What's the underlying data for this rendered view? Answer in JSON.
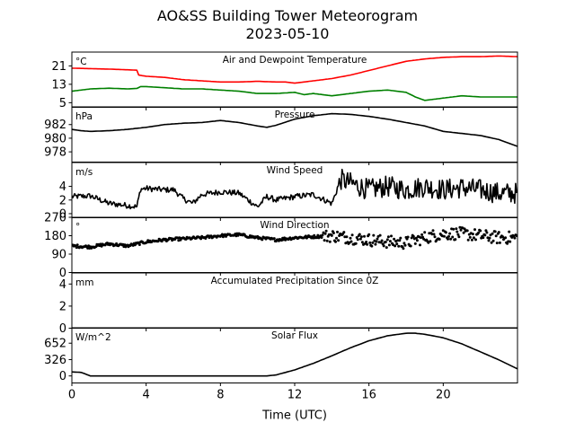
{
  "figure": {
    "title": "AO&SS Building Tower Meteorogram",
    "date": "2023-05-10",
    "xlabel": "Time (UTC)",
    "x_ticks": [
      0,
      4,
      8,
      12,
      16,
      20
    ],
    "x_range": [
      0,
      24
    ],
    "colors": {
      "temperature": "#ff0000",
      "dewpoint": "#008000",
      "default": "#000000"
    }
  },
  "chart_data": [
    {
      "type": "line",
      "title": "Air and Dewpoint Temperature",
      "unit": "°C",
      "ylim": [
        3,
        27
      ],
      "yticks": [
        5,
        13,
        21
      ],
      "series": [
        {
          "color": "#ff0000",
          "points": [
            [
              0,
              20
            ],
            [
              1,
              19.8
            ],
            [
              2,
              19.6
            ],
            [
              3,
              19.3
            ],
            [
              3.5,
              19.1
            ],
            [
              3.6,
              17
            ],
            [
              4,
              16.5
            ],
            [
              5,
              16
            ],
            [
              6,
              15
            ],
            [
              7,
              14.5
            ],
            [
              8,
              14
            ],
            [
              9,
              14
            ],
            [
              10,
              14.3
            ],
            [
              11,
              14
            ],
            [
              11.5,
              14
            ],
            [
              12,
              13.5
            ],
            [
              12.5,
              14
            ],
            [
              13,
              14.5
            ],
            [
              14,
              15.5
            ],
            [
              15,
              17
            ],
            [
              16,
              19
            ],
            [
              17,
              21
            ],
            [
              18,
              23
            ],
            [
              19,
              24
            ],
            [
              20,
              24.7
            ],
            [
              21,
              25
            ],
            [
              22,
              25
            ],
            [
              23,
              25.3
            ],
            [
              24,
              25
            ]
          ]
        },
        {
          "color": "#008000",
          "points": [
            [
              0,
              10
            ],
            [
              1,
              11
            ],
            [
              2,
              11.3
            ],
            [
              3,
              11
            ],
            [
              3.5,
              11.2
            ],
            [
              3.7,
              12
            ],
            [
              4,
              12
            ],
            [
              5,
              11.5
            ],
            [
              6,
              11
            ],
            [
              7,
              11
            ],
            [
              8,
              10.5
            ],
            [
              9,
              10
            ],
            [
              10,
              9
            ],
            [
              11,
              9
            ],
            [
              12,
              9.5
            ],
            [
              12.5,
              8.5
            ],
            [
              13,
              9
            ],
            [
              14,
              8
            ],
            [
              15,
              9
            ],
            [
              16,
              10
            ],
            [
              17,
              10.5
            ],
            [
              18,
              9.5
            ],
            [
              18.5,
              7.5
            ],
            [
              19,
              6
            ],
            [
              20,
              7
            ],
            [
              21,
              8
            ],
            [
              22,
              7.5
            ],
            [
              23,
              7.5
            ],
            [
              24,
              7.5
            ]
          ]
        }
      ]
    },
    {
      "type": "line",
      "title": "Pressure",
      "unit": "hPa",
      "ylim": [
        976.5,
        984.6
      ],
      "yticks": [
        978,
        980,
        982
      ],
      "series": [
        {
          "color": "#000000",
          "points": [
            [
              0,
              981.3
            ],
            [
              0.5,
              981.1
            ],
            [
              1,
              981
            ],
            [
              2,
              981.1
            ],
            [
              3,
              981.3
            ],
            [
              4,
              981.6
            ],
            [
              5,
              982
            ],
            [
              6,
              982.2
            ],
            [
              7,
              982.3
            ],
            [
              8,
              982.6
            ],
            [
              9,
              982.3
            ],
            [
              10,
              981.8
            ],
            [
              10.5,
              981.6
            ],
            [
              11,
              981.9
            ],
            [
              12,
              982.8
            ],
            [
              13,
              983.3
            ],
            [
              14,
              983.6
            ],
            [
              15,
              983.5
            ],
            [
              16,
              983.2
            ],
            [
              17,
              982.8
            ],
            [
              18,
              982.3
            ],
            [
              19,
              981.8
            ],
            [
              20,
              981
            ],
            [
              21,
              980.7
            ],
            [
              22,
              980.4
            ],
            [
              23,
              979.8
            ],
            [
              24,
              978.8
            ]
          ]
        }
      ]
    },
    {
      "type": "line",
      "title": "Wind Speed",
      "unit": "m/s",
      "ylim": [
        -0.6,
        7.5
      ],
      "yticks": [
        0,
        2,
        4
      ],
      "noise": 1.2,
      "series": [
        {
          "color": "#000000",
          "points": [
            [
              0,
              2.5
            ],
            [
              1,
              2.6
            ],
            [
              2,
              1.5
            ],
            [
              3,
              1.2
            ],
            [
              3.5,
              1
            ],
            [
              3.7,
              3.6
            ],
            [
              4,
              3.7
            ],
            [
              5,
              3.5
            ],
            [
              5.5,
              3.5
            ],
            [
              6,
              2.2
            ],
            [
              6.5,
              1.5
            ],
            [
              7,
              2.8
            ],
            [
              8,
              3.2
            ],
            [
              9,
              3
            ],
            [
              9.5,
              2
            ],
            [
              10,
              1
            ],
            [
              10.5,
              2.5
            ],
            [
              11,
              2
            ],
            [
              12,
              2.5
            ],
            [
              13,
              2.8
            ],
            [
              14,
              1.5
            ],
            [
              14.5,
              5
            ],
            [
              15,
              4.5
            ],
            [
              16,
              3.5
            ],
            [
              17,
              4
            ],
            [
              18,
              3.5
            ],
            [
              19,
              4
            ],
            [
              20,
              3.5
            ],
            [
              21,
              3.8
            ],
            [
              22,
              3.5
            ],
            [
              23,
              3
            ],
            [
              24,
              3
            ]
          ]
        }
      ]
    },
    {
      "type": "scatter",
      "title": "Wind Direction",
      "unit": "°",
      "ylim": [
        0,
        270
      ],
      "yticks": [
        0,
        90,
        180,
        270
      ],
      "noise": 14,
      "series": [
        {
          "color": "#000000",
          "points": [
            [
              0,
              130
            ],
            [
              1,
              125
            ],
            [
              2,
              140
            ],
            [
              3,
              130
            ],
            [
              4,
              150
            ],
            [
              5,
              160
            ],
            [
              6,
              165
            ],
            [
              7,
              170
            ],
            [
              8,
              180
            ],
            [
              9,
              185
            ],
            [
              10,
              170
            ],
            [
              11,
              160
            ],
            [
              12,
              170
            ],
            [
              13,
              175
            ],
            [
              14,
              180
            ],
            [
              15,
              170
            ],
            [
              16,
              160
            ],
            [
              17,
              150
            ],
            [
              18,
              145
            ],
            [
              19,
              170
            ],
            [
              20,
              190
            ],
            [
              21,
              190
            ],
            [
              22,
              180
            ],
            [
              23,
              170
            ],
            [
              24,
              170
            ]
          ]
        }
      ]
    },
    {
      "type": "line",
      "title": "Accumulated Precipitation Since 0Z",
      "unit": "mm",
      "ylim": [
        0,
        5
      ],
      "yticks": [
        0,
        2,
        4
      ],
      "series": [
        {
          "color": "#000000",
          "points": [
            [
              0,
              0
            ],
            [
              24,
              0
            ]
          ]
        }
      ]
    },
    {
      "type": "line",
      "title": "Solar Flux",
      "unit": "W/m^2",
      "ylim": [
        -140,
        960
      ],
      "yticks": [
        0,
        326,
        652
      ],
      "series": [
        {
          "color": "#000000",
          "points": [
            [
              0,
              80
            ],
            [
              0.5,
              70
            ],
            [
              1,
              0
            ],
            [
              10.5,
              0
            ],
            [
              11,
              20
            ],
            [
              12,
              120
            ],
            [
              13,
              250
            ],
            [
              14,
              400
            ],
            [
              15,
              560
            ],
            [
              16,
              700
            ],
            [
              17,
              800
            ],
            [
              18,
              850
            ],
            [
              18.5,
              850
            ],
            [
              19,
              830
            ],
            [
              20,
              760
            ],
            [
              21,
              640
            ],
            [
              22,
              480
            ],
            [
              23,
              320
            ],
            [
              24,
              140
            ]
          ]
        }
      ]
    }
  ]
}
